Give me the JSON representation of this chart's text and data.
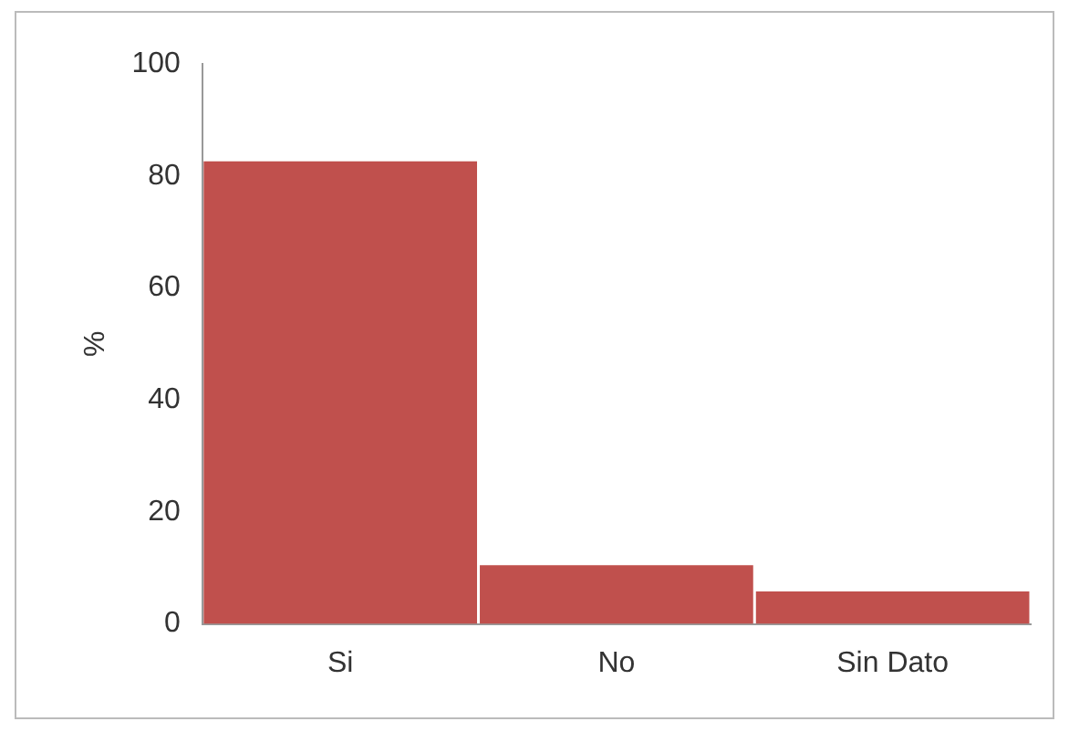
{
  "chart_data": {
    "type": "bar",
    "ylabel": "%",
    "categories": [
      "Si",
      "No",
      "Sin Dato"
    ],
    "values": [
      82.6,
      10.5,
      5.8
    ],
    "color": "#c0504d",
    "ylim": [
      0,
      100
    ],
    "yticks": [
      0,
      20,
      40,
      60,
      80,
      100
    ],
    "grid": false,
    "legend": false
  }
}
